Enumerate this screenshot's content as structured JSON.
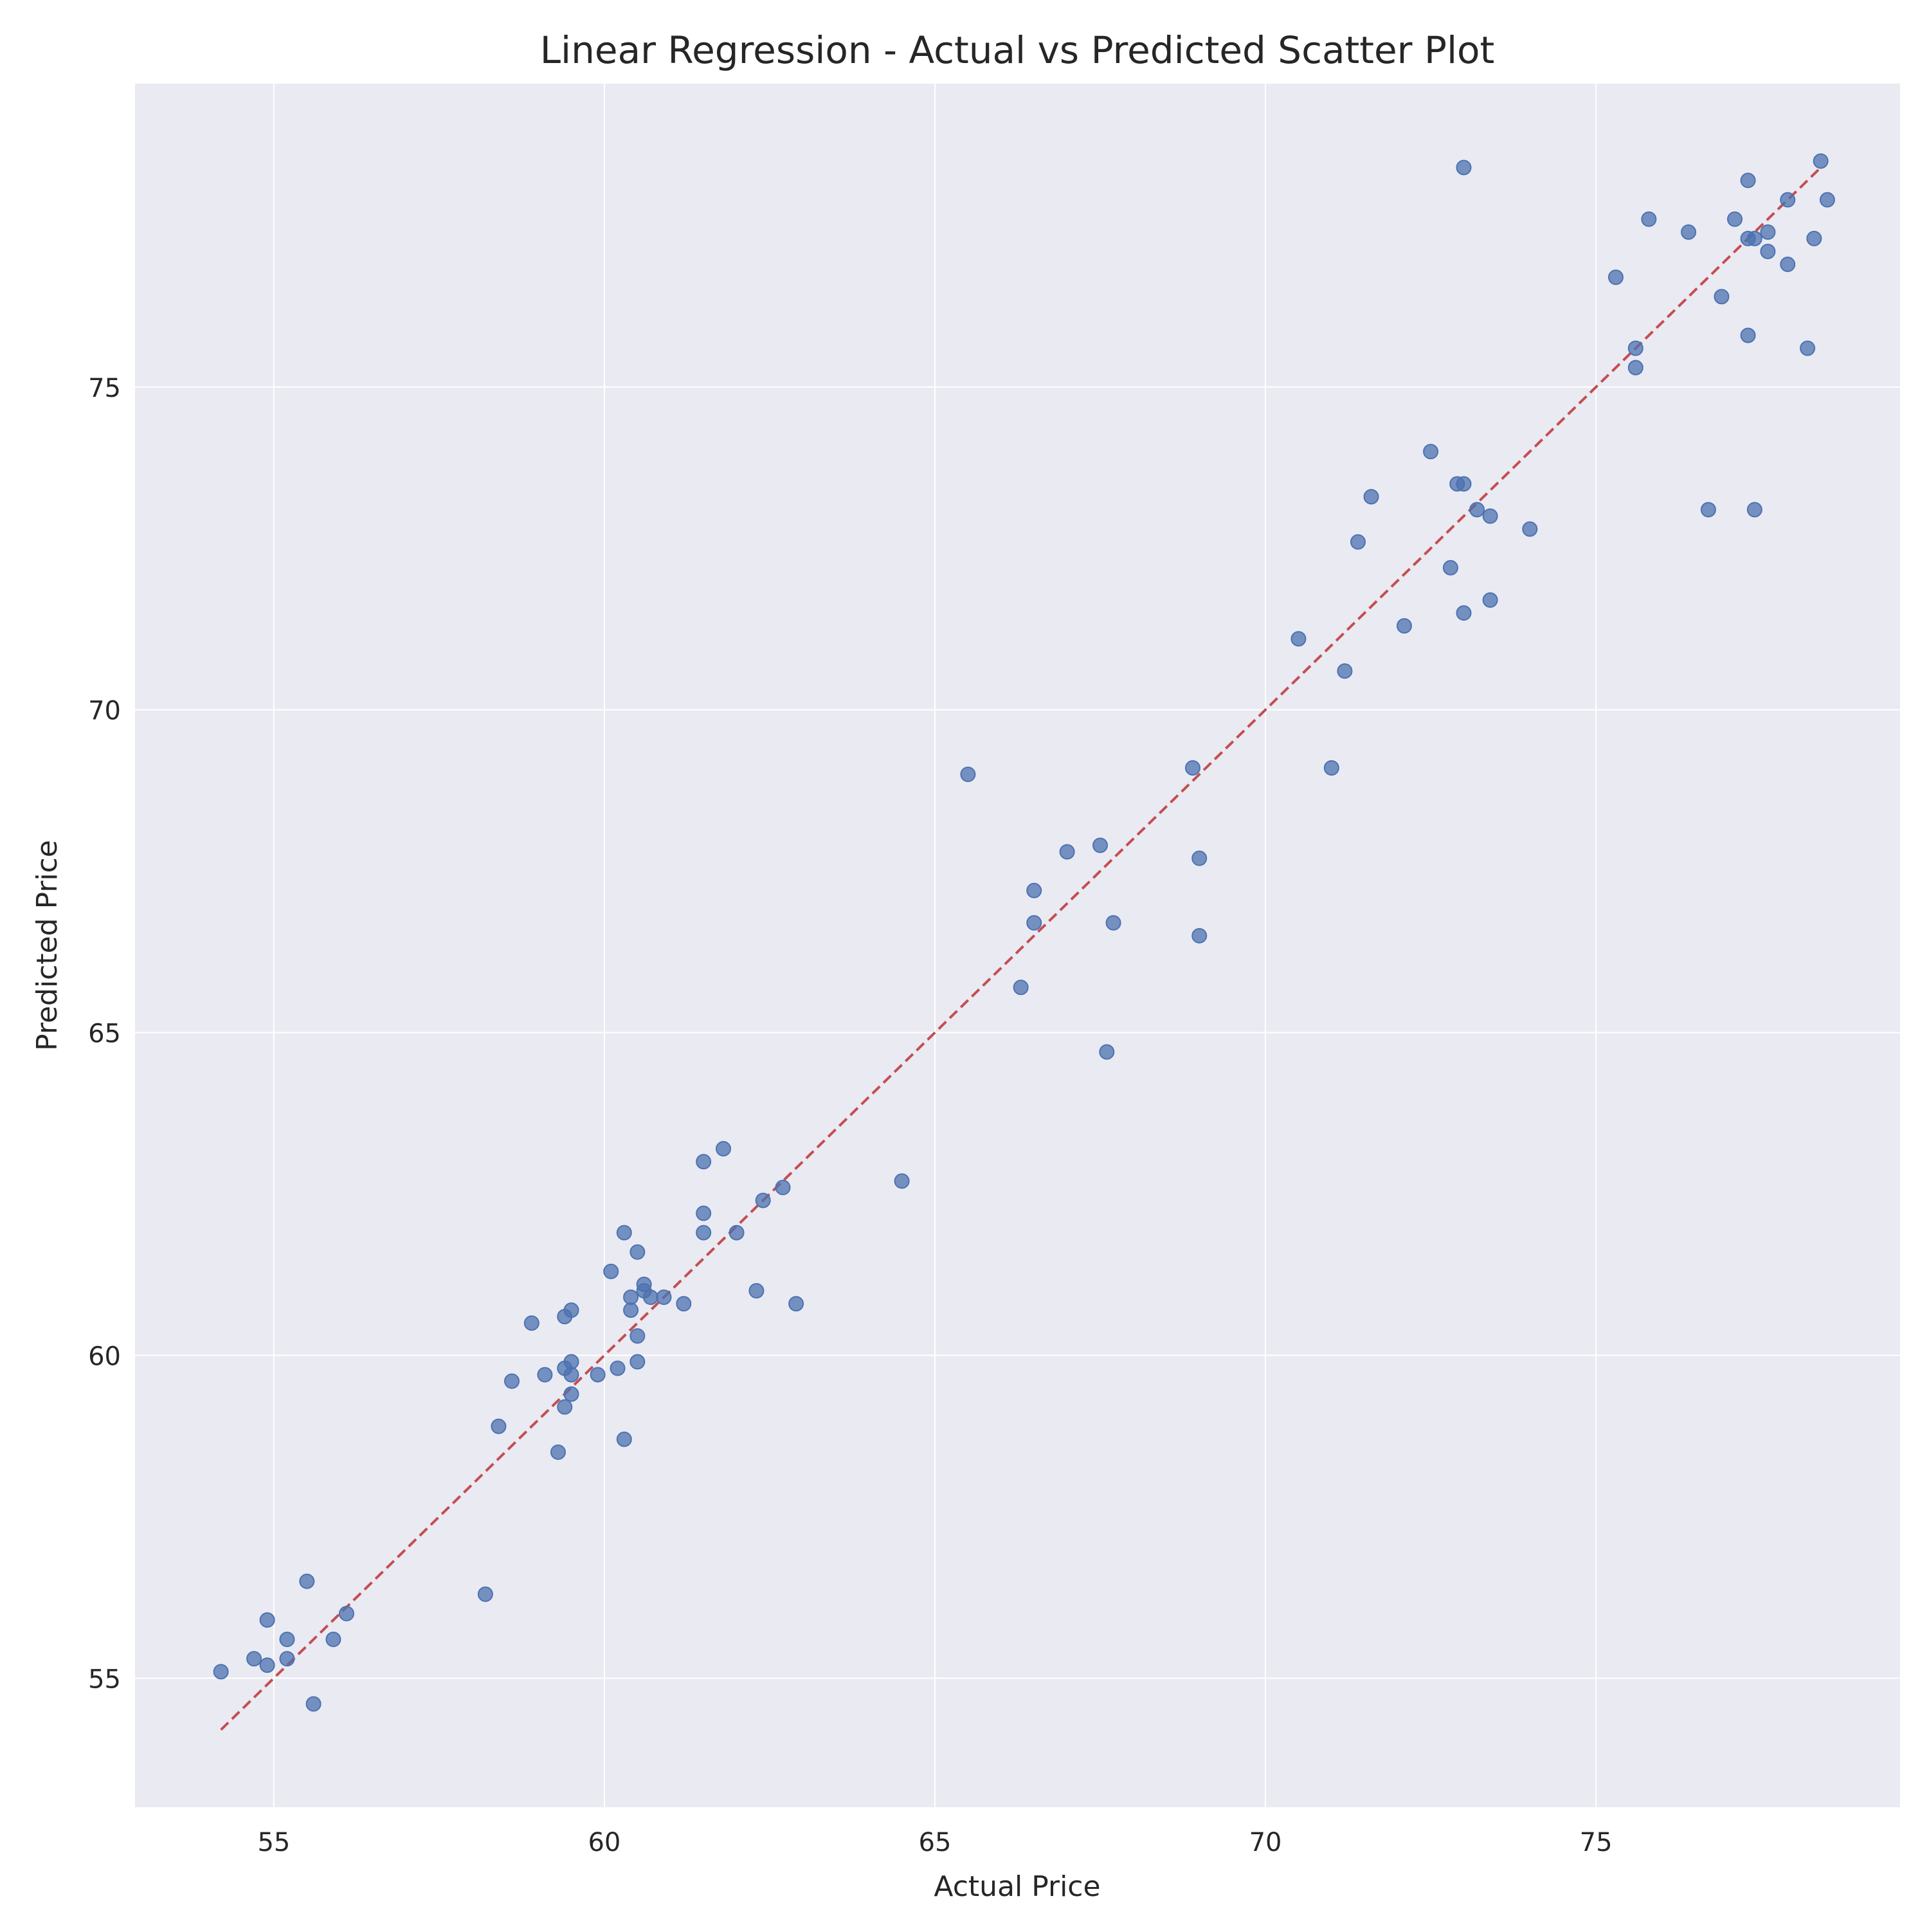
{
  "chart_data": {
    "type": "scatter",
    "title": "Linear Regression - Actual vs Predicted Scatter Plot",
    "xlabel": "Actual Price",
    "ylabel": "Predicted Price",
    "xlim": [
      52.9,
      79.6
    ],
    "ylim": [
      53.0,
      79.7
    ],
    "xticks": [
      55,
      60,
      65,
      70,
      75
    ],
    "yticks": [
      55,
      60,
      65,
      70,
      75
    ],
    "grid": true,
    "colors": {
      "background": "#eaeaf2",
      "grid": "#ffffff",
      "points": "#4c72b0",
      "reference_line": "#c44e52"
    },
    "reference_line": {
      "style": "dashed",
      "x": [
        54.2,
        78.4
      ],
      "y": [
        54.2,
        78.4
      ]
    },
    "series": [
      {
        "points": [
          [
            54.2,
            55.1
          ],
          [
            54.7,
            55.3
          ],
          [
            54.9,
            55.9
          ],
          [
            54.9,
            55.2
          ],
          [
            55.2,
            55.6
          ],
          [
            55.2,
            55.3
          ],
          [
            55.5,
            56.5
          ],
          [
            55.6,
            54.6
          ],
          [
            55.9,
            55.6
          ],
          [
            56.1,
            56.0
          ],
          [
            58.2,
            56.3
          ],
          [
            58.4,
            58.9
          ],
          [
            58.6,
            59.6
          ],
          [
            58.9,
            60.5
          ],
          [
            59.1,
            59.7
          ],
          [
            59.3,
            58.5
          ],
          [
            59.4,
            60.6
          ],
          [
            59.4,
            59.8
          ],
          [
            59.4,
            59.2
          ],
          [
            59.5,
            59.9
          ],
          [
            59.5,
            59.7
          ],
          [
            59.5,
            60.7
          ],
          [
            59.5,
            59.4
          ],
          [
            59.9,
            59.7
          ],
          [
            60.1,
            61.3
          ],
          [
            60.2,
            59.8
          ],
          [
            60.3,
            61.9
          ],
          [
            60.3,
            58.7
          ],
          [
            60.4,
            60.9
          ],
          [
            60.4,
            60.7
          ],
          [
            60.5,
            61.6
          ],
          [
            60.5,
            60.3
          ],
          [
            60.5,
            59.9
          ],
          [
            60.6,
            61.1
          ],
          [
            60.6,
            61.0
          ],
          [
            60.7,
            60.9
          ],
          [
            60.9,
            60.9
          ],
          [
            61.2,
            60.8
          ],
          [
            61.5,
            63.0
          ],
          [
            61.5,
            62.2
          ],
          [
            61.5,
            61.9
          ],
          [
            61.8,
            63.2
          ],
          [
            62.0,
            61.9
          ],
          [
            62.3,
            61.0
          ],
          [
            62.4,
            62.4
          ],
          [
            62.7,
            62.6
          ],
          [
            62.9,
            60.8
          ],
          [
            64.5,
            62.7
          ],
          [
            65.5,
            69.0
          ],
          [
            66.3,
            65.7
          ],
          [
            66.5,
            67.2
          ],
          [
            66.5,
            66.7
          ],
          [
            67.0,
            67.8
          ],
          [
            67.5,
            67.9
          ],
          [
            67.6,
            64.7
          ],
          [
            67.7,
            66.7
          ],
          [
            68.9,
            69.1
          ],
          [
            69.0,
            67.7
          ],
          [
            69.0,
            66.5
          ],
          [
            70.5,
            71.1
          ],
          [
            71.0,
            69.1
          ],
          [
            71.2,
            70.6
          ],
          [
            71.4,
            72.6
          ],
          [
            71.6,
            73.3
          ],
          [
            72.1,
            71.3
          ],
          [
            72.5,
            74.0
          ],
          [
            72.8,
            72.2
          ],
          [
            72.9,
            73.5
          ],
          [
            73.0,
            78.4
          ],
          [
            73.0,
            73.5
          ],
          [
            73.0,
            71.5
          ],
          [
            73.2,
            73.1
          ],
          [
            73.4,
            73.0
          ],
          [
            73.4,
            71.7
          ],
          [
            74.0,
            72.8
          ],
          [
            75.3,
            76.7
          ],
          [
            75.6,
            75.6
          ],
          [
            75.6,
            75.3
          ],
          [
            75.8,
            77.6
          ],
          [
            76.4,
            77.4
          ],
          [
            76.7,
            73.1
          ],
          [
            76.9,
            76.4
          ],
          [
            77.1,
            77.6
          ],
          [
            77.3,
            78.2
          ],
          [
            77.3,
            77.3
          ],
          [
            77.3,
            75.8
          ],
          [
            77.4,
            77.3
          ],
          [
            77.4,
            73.1
          ],
          [
            77.6,
            77.4
          ],
          [
            77.6,
            77.1
          ],
          [
            77.9,
            77.9
          ],
          [
            77.9,
            76.9
          ],
          [
            78.2,
            75.6
          ],
          [
            78.3,
            77.3
          ],
          [
            78.4,
            78.5
          ],
          [
            78.5,
            77.9
          ]
        ]
      }
    ]
  }
}
